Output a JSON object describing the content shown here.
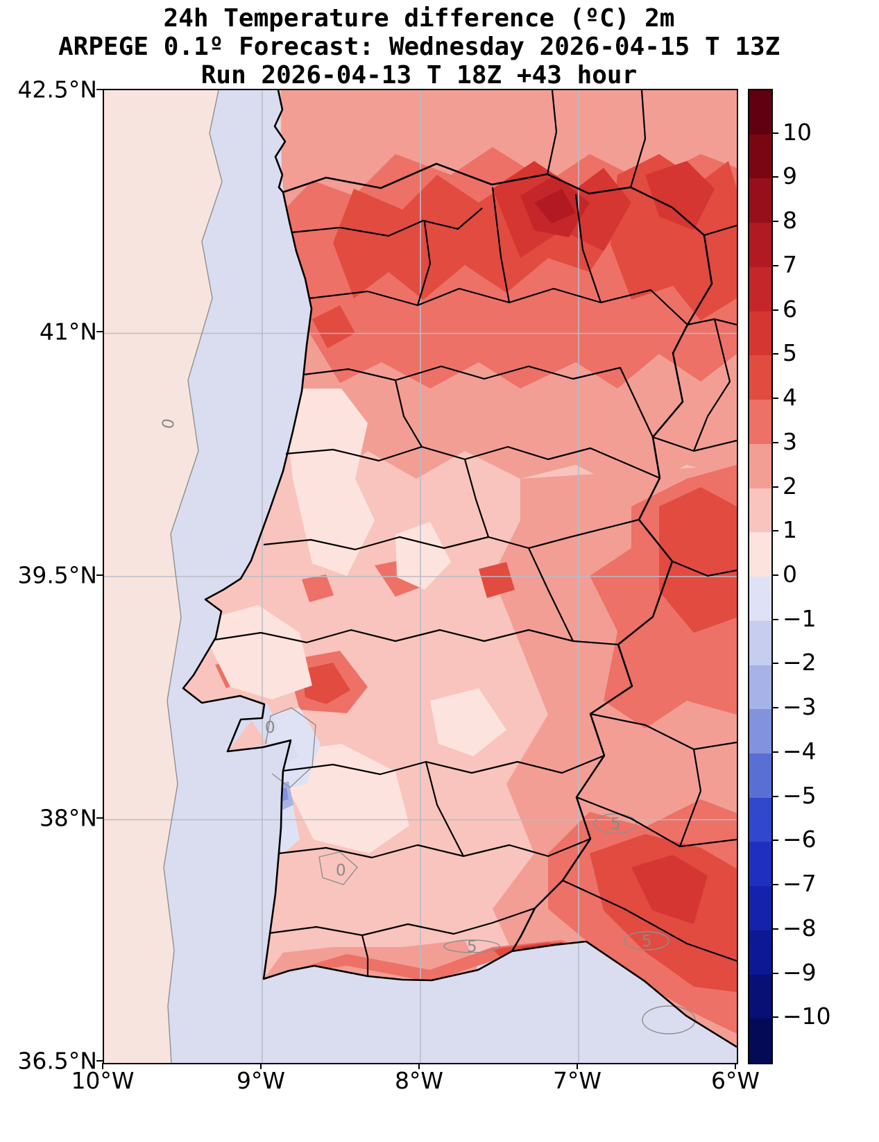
{
  "title": {
    "line1": "24h Temperature difference (ºC) 2m",
    "line2": "ARPEGE 0.1º Forecast: Wednesday 2026-04-15 T 13Z",
    "line3": "Run 2026-04-13 T 18Z +43 hour"
  },
  "axes": {
    "y_ticks": [
      "42.5°N",
      "41°N",
      "39.5°N",
      "38°N",
      "36.5°N"
    ],
    "x_ticks": [
      "10°W",
      "9°W",
      "8°W",
      "7°W",
      "6°W"
    ]
  },
  "colorbar": {
    "tick_labels": [
      "10",
      "9",
      "8",
      "7",
      "6",
      "5",
      "4",
      "3",
      "2",
      "1",
      "0",
      "−1",
      "−2",
      "−3",
      "−4",
      "−5",
      "−6",
      "−7",
      "−8",
      "−9",
      "−10"
    ],
    "cell_colors": [
      "#5f0010",
      "#7a0614",
      "#970f1a",
      "#b11a22",
      "#c5262a",
      "#d63632",
      "#e24b40",
      "#ed7166",
      "#f29e94",
      "#f8c4bd",
      "#fde3de",
      "#dfe2f4",
      "#c6cdee",
      "#a7b2e6",
      "#8392dc",
      "#5a6fd4",
      "#3148cc",
      "#1f30c0",
      "#1523ac",
      "#0d1894",
      "#081075",
      "#050a56"
    ]
  },
  "map": {
    "colors": {
      "ocean": "#dadcf0",
      "ocean_band": "#f8e4de",
      "land_base": "#f8c4bd",
      "land0": "#fde3de",
      "land2": "#f29e94",
      "land3": "#ed7166",
      "land4": "#e24b40",
      "land5": "#d63632",
      "land6": "#c5262a",
      "land7": "#b11a22",
      "blue1": "#dfe2f4",
      "blue2": "#a7b2e6",
      "blue3": "#8392dc",
      "boundary": "#000000",
      "grid": "#b9bcc8",
      "contour": "#8f8f8f"
    },
    "contour_labels": [
      {
        "text": "0"
      },
      {
        "text": "0"
      },
      {
        "text": "0"
      },
      {
        "text": "5"
      },
      {
        "text": "5"
      },
      {
        "text": "5"
      }
    ]
  }
}
